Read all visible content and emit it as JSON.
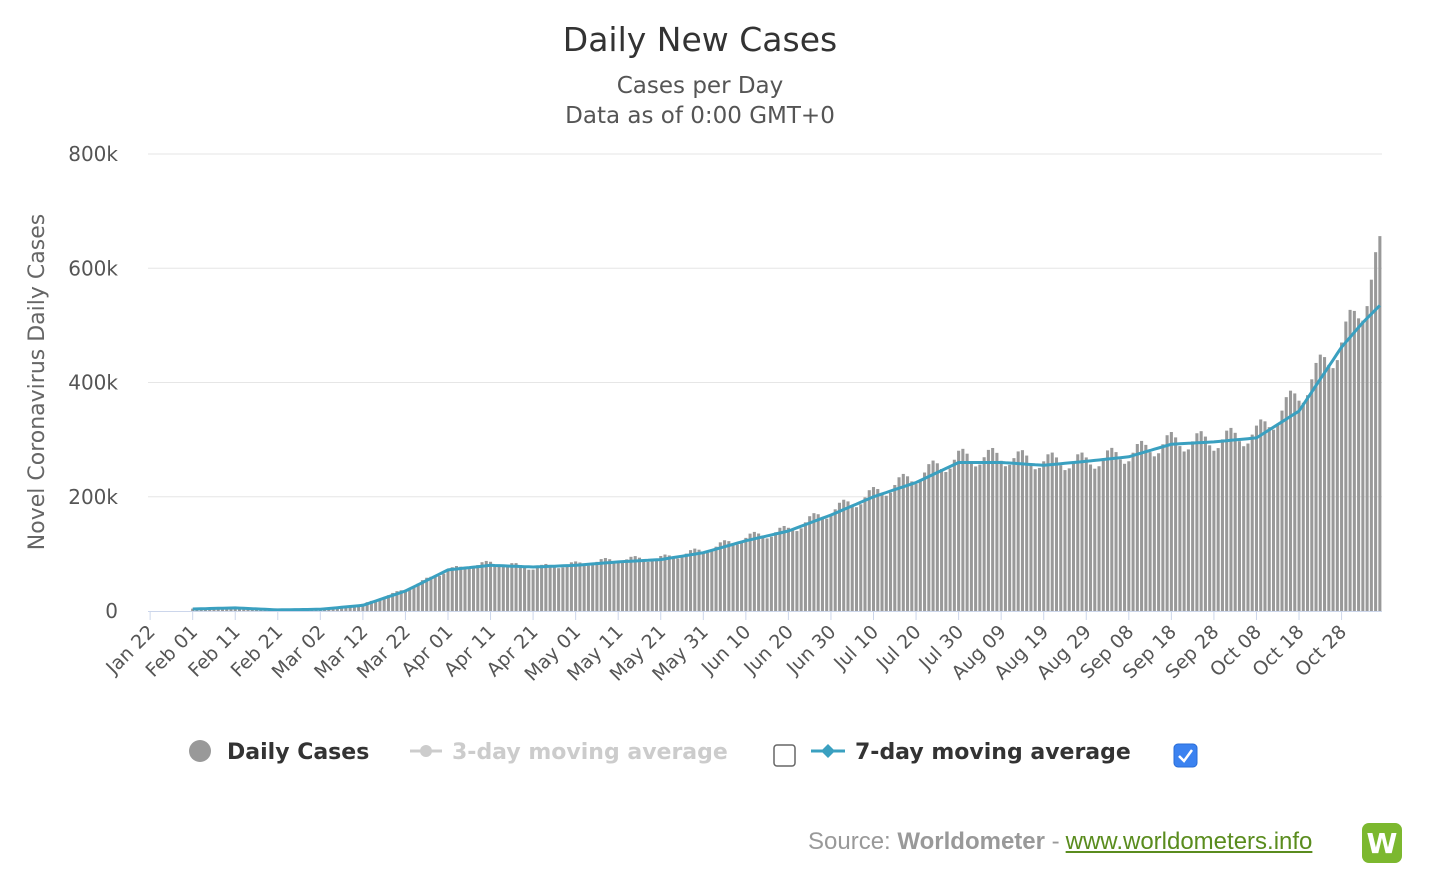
{
  "chart_data": {
    "type": "bar",
    "title": "Daily New Cases",
    "subtitle_lines": [
      "Cases per Day",
      "Data as of 0:00 GMT+0"
    ],
    "ylabel": "Novel Coronavirus Daily Cases",
    "ylim": [
      0,
      800000
    ],
    "y_ticks": [
      {
        "value": 0,
        "label": "0"
      },
      {
        "value": 200000,
        "label": "200k"
      },
      {
        "value": 400000,
        "label": "400k"
      },
      {
        "value": 600000,
        "label": "600k"
      },
      {
        "value": 800000,
        "label": "800k"
      }
    ],
    "x_ticks": [
      "Jan 22",
      "Feb 01",
      "Feb 11",
      "Feb 21",
      "Mar 02",
      "Mar 12",
      "Mar 22",
      "Apr 01",
      "Apr 11",
      "Apr 21",
      "May 01",
      "May 11",
      "May 21",
      "May 31",
      "Jun 10",
      "Jun 20",
      "Jun 30",
      "Jul 10",
      "Jul 20",
      "Jul 30",
      "Aug 09",
      "Aug 19",
      "Aug 29",
      "Sep 08",
      "Sep 18",
      "Sep 28",
      "Oct 08",
      "Oct 18",
      "Oct 28"
    ],
    "date_range": [
      "2020-01-22",
      "2020-11-06"
    ],
    "grid": true,
    "series": [
      {
        "name": "Daily Cases",
        "color": "#999999",
        "type": "bar",
        "x": [
          "Feb 01",
          "Feb 11",
          "Feb 21",
          "Mar 02",
          "Mar 12",
          "Mar 22",
          "Apr 01",
          "Apr 11",
          "Apr 21",
          "May 01",
          "May 11",
          "May 21",
          "May 31",
          "Jun 10",
          "Jun 20",
          "Jun 30",
          "Jul 10",
          "Jul 20",
          "Jul 30",
          "Aug 09",
          "Aug 19",
          "Aug 29",
          "Sep 08",
          "Sep 18",
          "Sep 28",
          "Oct 08",
          "Oct 18",
          "Oct 28",
          "Nov 02",
          "Nov 06"
        ],
        "values": [
          4000,
          6000,
          1000,
          2000,
          12000,
          38000,
          72000,
          84000,
          76000,
          82000,
          90000,
          92000,
          106000,
          128000,
          142000,
          175000,
          205000,
          236000,
          268000,
          270000,
          262000,
          262000,
          275000,
          296000,
          298000,
          310000,
          378000,
          470000,
          540000,
          620000
        ]
      },
      {
        "name": "3-day moving average",
        "color": "#cccccc",
        "hidden": true
      },
      {
        "name": "7-day moving average",
        "color": "#3aa0c0",
        "type": "line",
        "x": [
          "Jan 22",
          "Feb 01",
          "Feb 11",
          "Feb 21",
          "Mar 02",
          "Mar 12",
          "Mar 22",
          "Apr 01",
          "Apr 11",
          "Apr 21",
          "May 01",
          "May 11",
          "May 21",
          "May 31",
          "Jun 10",
          "Jun 20",
          "Jun 30",
          "Jul 10",
          "Jul 20",
          "Jul 30",
          "Aug 09",
          "Aug 19",
          "Aug 29",
          "Sep 08",
          "Sep 18",
          "Sep 28",
          "Oct 08",
          "Oct 18",
          "Oct 28",
          "Nov 02",
          "Nov 06"
        ],
        "values": [
          null,
          3500,
          5500,
          2000,
          3000,
          10000,
          35000,
          72000,
          80000,
          77000,
          80000,
          86000,
          90000,
          102000,
          123000,
          140000,
          168000,
          200000,
          225000,
          260000,
          260000,
          255000,
          262000,
          270000,
          292000,
          296000,
          303000,
          350000,
          462000,
          505000,
          535000
        ]
      }
    ]
  },
  "legend": {
    "items": [
      {
        "label": "Daily Cases",
        "color": "#333333",
        "marker_color": "#999999",
        "checked": null
      },
      {
        "label": "3-day moving average",
        "color": "#cccccc",
        "marker_color": "#cccccc",
        "checked": false
      },
      {
        "label": "7-day moving average",
        "color": "#333333",
        "marker_color": "#3aa0c0",
        "checked": true
      }
    ]
  },
  "footer": {
    "prefix": "Source:",
    "name": "Worldometer",
    "separator": "-",
    "link": "www.worldometers.info",
    "logo_letter": "W"
  }
}
